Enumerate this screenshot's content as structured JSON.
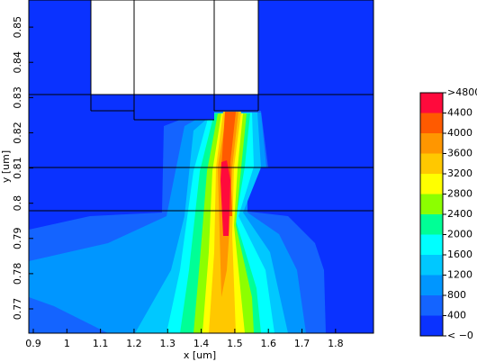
{
  "chart_data": {
    "type": "contour",
    "xlabel": "x [um]",
    "ylabel": "y [um]",
    "xlim": [
      0.8866,
      1.913
    ],
    "ylim": [
      0.7631,
      0.8577
    ],
    "xticks": [
      0.9,
      1,
      1.1,
      1.2,
      1.3,
      1.4,
      1.5,
      1.6,
      1.7,
      1.8
    ],
    "yticks": [
      0.77,
      0.78,
      0.79,
      0.8,
      0.81,
      0.82,
      0.83,
      0.84,
      0.85
    ],
    "colorbar_ticks": [
      {
        "value": 0,
        "label": "<  −0"
      },
      400,
      800,
      1200,
      1600,
      2000,
      2400,
      2800,
      3200,
      3600,
      4000,
      4400,
      {
        "value": 4800,
        "label": ">4800"
      }
    ],
    "colors": [
      "#0a32ff",
      "#1464ff",
      "#0096ff",
      "#00c8ff",
      "#00ffff",
      "#00ff96",
      "#8cff00",
      "#ffff00",
      "#ffc800",
      "#ff9600",
      "#ff5a00",
      "#ff0a3c"
    ]
  }
}
